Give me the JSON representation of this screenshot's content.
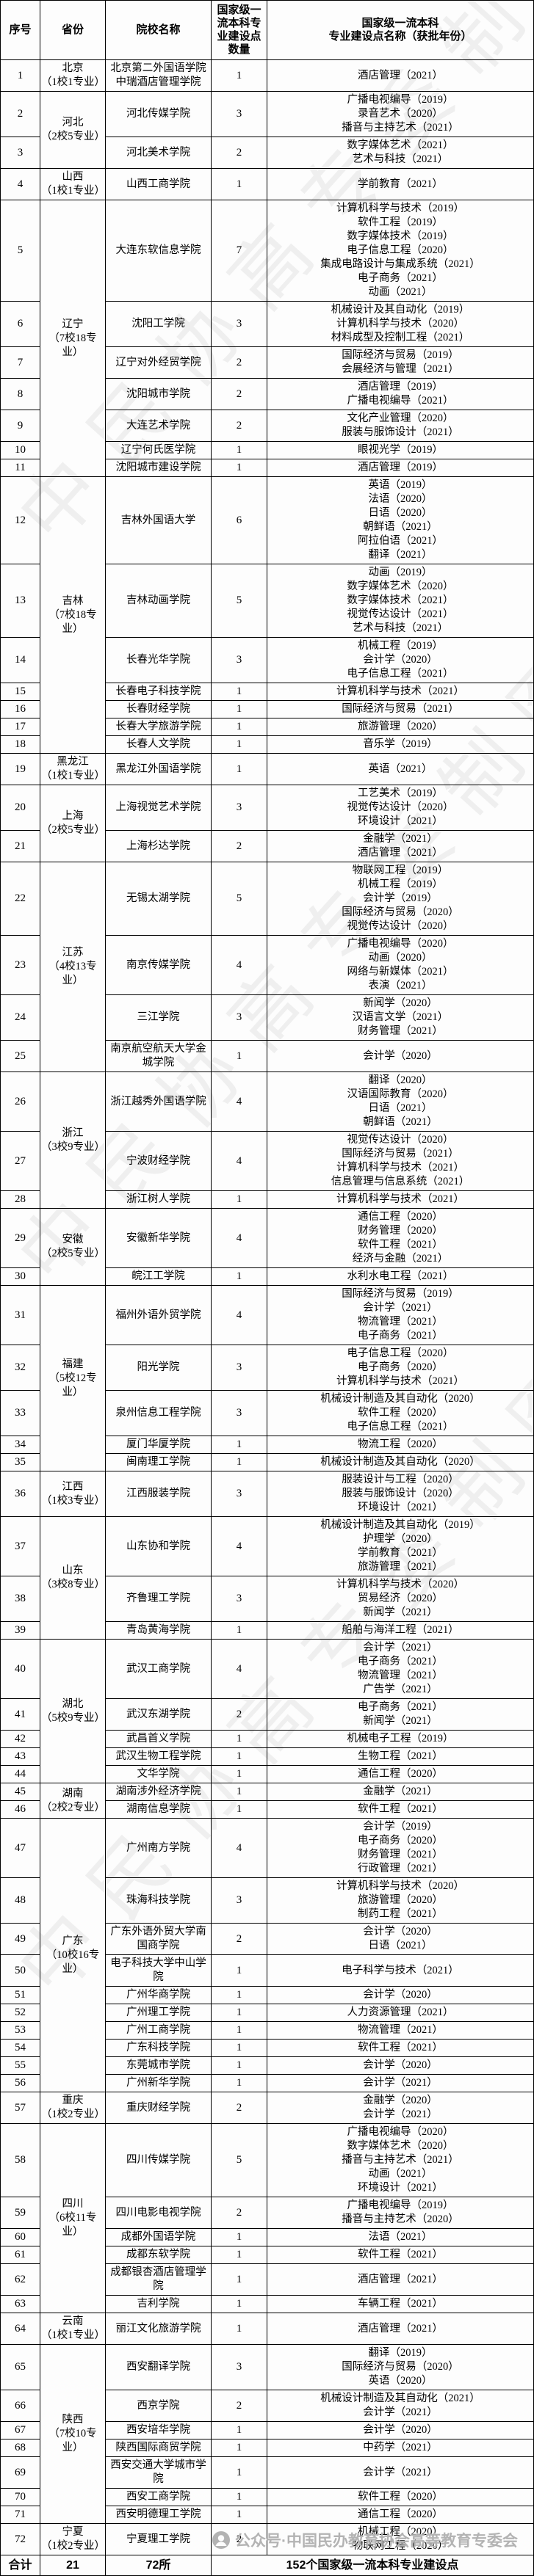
{
  "table": {
    "columns": [
      "序号",
      "省份",
      "院校名称",
      "国家级一流本科专业建设点数量",
      "国家级一流本科\n专业建设点名称（获批年份）"
    ],
    "provinces": [
      {
        "name": "北京",
        "note": "（1校1专业）",
        "schools": [
          {
            "no": "1",
            "name": "北京第二外国语学院中瑞酒店管理学院",
            "count": "1",
            "majors": [
              "酒店管理（2021）"
            ]
          }
        ]
      },
      {
        "name": "河北",
        "note": "（2校5专业）",
        "schools": [
          {
            "no": "2",
            "name": "河北传媒学院",
            "count": "3",
            "majors": [
              "广播电视编导（2019）",
              "录音艺术（2020）",
              "播音与主持艺术（2021）"
            ]
          },
          {
            "no": "3",
            "name": "河北美术学院",
            "count": "2",
            "majors": [
              "数字媒体艺术（2021）",
              "艺术与科技（2021）"
            ]
          }
        ]
      },
      {
        "name": "山西",
        "note": "（1校1专业）",
        "schools": [
          {
            "no": "4",
            "name": "山西工商学院",
            "count": "1",
            "majors": [
              "学前教育（2021）"
            ]
          }
        ]
      },
      {
        "name": "辽宁",
        "note": "（7校18专业）",
        "schools": [
          {
            "no": "5",
            "name": "大连东软信息学院",
            "count": "7",
            "majors": [
              "计算机科学与技术（2019）",
              "软件工程（2019）",
              "数字媒体技术（2019）",
              "电子信息工程（2020）",
              "集成电路设计与集成系统（2021）",
              "电子商务（2021）",
              "动画（2021）"
            ]
          },
          {
            "no": "6",
            "name": "沈阳工学院",
            "count": "3",
            "majors": [
              "机械设计及其自动化（2019）",
              "计算机科学与技术（2020）",
              "材料成型及控制工程（2021）"
            ]
          },
          {
            "no": "7",
            "name": "辽宁对外经贸学院",
            "count": "2",
            "majors": [
              "国际经济与贸易（2019）",
              "会展经济与管理（2021）"
            ]
          },
          {
            "no": "8",
            "name": "沈阳城市学院",
            "count": "2",
            "majors": [
              "酒店管理（2019）",
              "广播电视编导（2021）"
            ]
          },
          {
            "no": "9",
            "name": "大连艺术学院",
            "count": "2",
            "majors": [
              "文化产业管理（2020）",
              "服装与服饰设计（2021）"
            ]
          },
          {
            "no": "10",
            "name": "辽宁何氏医学院",
            "count": "1",
            "majors": [
              "眼视光学（2019）"
            ]
          },
          {
            "no": "11",
            "name": "沈阳城市建设学院",
            "count": "1",
            "majors": [
              "酒店管理（2019）"
            ]
          }
        ]
      },
      {
        "name": "吉林",
        "note": "（7校18专业）",
        "schools": [
          {
            "no": "12",
            "name": "吉林外国语大学",
            "count": "6",
            "majors": [
              "英语（2019）",
              "法语（2020）",
              "日语（2020）",
              "朝鲜语（2021）",
              "阿拉伯语（2021）",
              "翻译（2021）"
            ]
          },
          {
            "no": "13",
            "name": "吉林动画学院",
            "count": "5",
            "majors": [
              "动画（2019）",
              "数字媒体艺术（2020）",
              "数字媒体技术（2021）",
              "视觉传达设计（2021）",
              "艺术与科技（2021）"
            ]
          },
          {
            "no": "14",
            "name": "长春光华学院",
            "count": "3",
            "majors": [
              "机械工程（2019）",
              "会计学（2020）",
              "电子信息工程（2021）"
            ]
          },
          {
            "no": "15",
            "name": "长春电子科技学院",
            "count": "1",
            "majors": [
              "计算机科学与技术（2021）"
            ]
          },
          {
            "no": "16",
            "name": "长春财经学院",
            "count": "1",
            "majors": [
              "国际经济与贸易（2021）"
            ]
          },
          {
            "no": "17",
            "name": "长春大学旅游学院",
            "count": "1",
            "majors": [
              "旅游管理（2020）"
            ]
          },
          {
            "no": "18",
            "name": "长春人文学院",
            "count": "1",
            "majors": [
              "音乐学（2019）"
            ]
          }
        ]
      },
      {
        "name": "黑龙江",
        "note": "（1校1专业）",
        "schools": [
          {
            "no": "19",
            "name": "黑龙江外国语学院",
            "count": "1",
            "majors": [
              "英语（2021）"
            ]
          }
        ]
      },
      {
        "name": "上海",
        "note": "（2校5专业）",
        "schools": [
          {
            "no": "20",
            "name": "上海视觉艺术学院",
            "count": "3",
            "majors": [
              "工艺美术（2019）",
              "视觉传达设计（2020）",
              "环境设计（2021）"
            ]
          },
          {
            "no": "21",
            "name": "上海杉达学院",
            "count": "2",
            "majors": [
              "金融学（2021）",
              "酒店管理（2021）"
            ]
          }
        ]
      },
      {
        "name": "江苏",
        "note": "（4校13专业）",
        "schools": [
          {
            "no": "22",
            "name": "无锡太湖学院",
            "count": "5",
            "majors": [
              "物联网工程（2019）",
              "机械工程（2019）",
              "会计学（2019）",
              "国际经济与贸易（2020）",
              "视觉传达设计（2020）"
            ]
          },
          {
            "no": "23",
            "name": "南京传媒学院",
            "count": "4",
            "majors": [
              "广播电视编导（2020）",
              "动画（2020）",
              "网络与新媒体（2021）",
              "表演（2021）"
            ]
          },
          {
            "no": "24",
            "name": "三江学院",
            "count": "3",
            "majors": [
              "新闻学（2020）",
              "汉语言文学（2021）",
              "财务管理（2021）"
            ]
          },
          {
            "no": "25",
            "name": "南京航空航天大学金城学院",
            "count": "1",
            "majors": [
              "会计学（2020）"
            ]
          }
        ]
      },
      {
        "name": "浙江",
        "note": "（3校9专业）",
        "schools": [
          {
            "no": "26",
            "name": "浙江越秀外国语学院",
            "count": "4",
            "majors": [
              "翻译（2020）",
              "汉语国际教育（2020）",
              "日语（2021）",
              "朝鲜语（2021）"
            ]
          },
          {
            "no": "27",
            "name": "宁波财经学院",
            "count": "4",
            "majors": [
              "视觉传达设计（2020）",
              "国际经济与贸易（2021）",
              "计算机科学与技术（2021）",
              "信息管理与信息系统（2021）"
            ]
          },
          {
            "no": "28",
            "name": "浙江树人学院",
            "count": "1",
            "majors": [
              "计算机科学与技术（2021）"
            ]
          }
        ]
      },
      {
        "name": "安徽",
        "note": "（2校5专业）",
        "schools": [
          {
            "no": "29",
            "name": "安徽新华学院",
            "count": "4",
            "majors": [
              "通信工程（2020）",
              "财务管理（2020）",
              "软件工程（2021）",
              "经济与金融（2021）"
            ]
          },
          {
            "no": "30",
            "name": "皖江工学院",
            "count": "1",
            "majors": [
              "水利水电工程（2021）"
            ]
          }
        ]
      },
      {
        "name": "福建",
        "note": "（5校12专业）",
        "schools": [
          {
            "no": "31",
            "name": "福州外语外贸学院",
            "count": "4",
            "majors": [
              "国际经济与贸易（2019）",
              "会计学（2021）",
              "物流管理（2021）",
              "电子商务（2021）"
            ]
          },
          {
            "no": "32",
            "name": "阳光学院",
            "count": "3",
            "majors": [
              "电子信息工程（2020）",
              "电子商务（2020）",
              "计算机科学与技术（2021）"
            ]
          },
          {
            "no": "33",
            "name": "泉州信息工程学院",
            "count": "3",
            "majors": [
              "机械设计制造及其自动化（2020）",
              "软件工程（2020）",
              "电子信息工程（2021）"
            ]
          },
          {
            "no": "34",
            "name": "厦门华厦学院",
            "count": "1",
            "majors": [
              "物流工程（2020）"
            ]
          },
          {
            "no": "35",
            "name": "闽南理工学院",
            "count": "1",
            "majors": [
              "机械设计制造及其自动化（2020）"
            ]
          }
        ]
      },
      {
        "name": "江西",
        "note": "（1校3专业）",
        "schools": [
          {
            "no": "36",
            "name": "江西服装学院",
            "count": "3",
            "majors": [
              "服装设计与工程（2020）",
              "服装与服饰设计（2020）",
              "环境设计（2021）"
            ]
          }
        ]
      },
      {
        "name": "山东",
        "note": "（3校8专业）",
        "schools": [
          {
            "no": "37",
            "name": "山东协和学院",
            "count": "4",
            "majors": [
              "机械设计制造及其自动化（2019）",
              "护理学（2020）",
              "学前教育（2021）",
              "旅游管理（2021）"
            ]
          },
          {
            "no": "38",
            "name": "齐鲁理工学院",
            "count": "3",
            "majors": [
              "计算机科学与技术（2020）",
              "贸易经济（2020）",
              "新闻学（2021）"
            ]
          },
          {
            "no": "39",
            "name": "青岛黄海学院",
            "count": "1",
            "majors": [
              "船舶与海洋工程（2021）"
            ]
          }
        ]
      },
      {
        "name": "湖北",
        "note": "（5校9专业）",
        "schools": [
          {
            "no": "40",
            "name": "武汉工商学院",
            "count": "4",
            "majors": [
              "会计学（2021）",
              "电子商务（2021）",
              "物流管理（2021）",
              "广告学（2021）"
            ]
          },
          {
            "no": "41",
            "name": "武汉东湖学院",
            "count": "2",
            "majors": [
              "电子商务（2021）",
              "新闻学（2021）"
            ]
          },
          {
            "no": "42",
            "name": "武昌首义学院",
            "count": "1",
            "majors": [
              "机械电子工程（2019）"
            ]
          },
          {
            "no": "43",
            "name": "武汉生物工程学院",
            "count": "1",
            "majors": [
              "生物工程（2021）"
            ]
          },
          {
            "no": "44",
            "name": "文华学院",
            "count": "1",
            "majors": [
              "通信工程（2020）"
            ]
          }
        ]
      },
      {
        "name": "湖南",
        "note": "（2校2专业）",
        "schools": [
          {
            "no": "45",
            "name": "湖南涉外经济学院",
            "count": "1",
            "majors": [
              "金融学（2021）"
            ]
          },
          {
            "no": "46",
            "name": "湖南信息学院",
            "count": "1",
            "majors": [
              "软件工程（2021）"
            ]
          }
        ]
      },
      {
        "name": "广东",
        "note": "（10校16专业）",
        "schools": [
          {
            "no": "47",
            "name": "广州南方学院",
            "count": "4",
            "majors": [
              "会计学（2019）",
              "电子商务（2020）",
              "财务管理（2021）",
              "行政管理（2021）"
            ]
          },
          {
            "no": "48",
            "name": "珠海科技学院",
            "count": "3",
            "majors": [
              "计算机科学与技术（2020）",
              "旅游管理（2020）",
              "制药工程（2021）"
            ]
          },
          {
            "no": "49",
            "name": "广东外语外贸大学南国商学院",
            "count": "2",
            "majors": [
              "会计学（2020）",
              "日语（2021）"
            ]
          },
          {
            "no": "50",
            "name": "电子科技大学中山学院",
            "count": "1",
            "majors": [
              "电子科学与技术（2021）"
            ]
          },
          {
            "no": "51",
            "name": "广州华商学院",
            "count": "1",
            "majors": [
              "会计学（2020）"
            ]
          },
          {
            "no": "52",
            "name": "广州理工学院",
            "count": "1",
            "majors": [
              "人力资源管理（2021）"
            ]
          },
          {
            "no": "53",
            "name": "广州工商学院",
            "count": "1",
            "majors": [
              "物流管理（2021）"
            ]
          },
          {
            "no": "54",
            "name": "广东科技学院",
            "count": "1",
            "majors": [
              "软件工程（2021）"
            ]
          },
          {
            "no": "55",
            "name": "东莞城市学院",
            "count": "1",
            "majors": [
              "会计学（2020）"
            ]
          },
          {
            "no": "56",
            "name": "广州新华学院",
            "count": "1",
            "majors": [
              "会计学（2021）"
            ]
          }
        ]
      },
      {
        "name": "重庆",
        "note": "（1校2专业）",
        "schools": [
          {
            "no": "57",
            "name": "重庆财经学院",
            "count": "2",
            "majors": [
              "金融学（2020）",
              "会计学（2021）"
            ]
          }
        ]
      },
      {
        "name": "四川",
        "note": "（6校11专业）",
        "schools": [
          {
            "no": "58",
            "name": "四川传媒学院",
            "count": "5",
            "majors": [
              "广播电视编导（2020）",
              "数字媒体艺术（2020）",
              "播音与主持艺术（2021）",
              "动画（2021）",
              "环境设计（2021）"
            ]
          },
          {
            "no": "59",
            "name": "四川电影电视学院",
            "count": "2",
            "majors": [
              "广播电视编导（2019）",
              "播音与主持艺术（2020）"
            ]
          },
          {
            "no": "60",
            "name": "成都外国语学院",
            "count": "1",
            "majors": [
              "法语（2021）"
            ]
          },
          {
            "no": "61",
            "name": "成都东软学院",
            "count": "1",
            "majors": [
              "软件工程（2021）"
            ]
          },
          {
            "no": "62",
            "name": "成都银杏酒店管理学院",
            "count": "1",
            "majors": [
              "酒店管理（2021）"
            ]
          },
          {
            "no": "63",
            "name": "吉利学院",
            "count": "1",
            "majors": [
              "车辆工程（2021）"
            ]
          }
        ]
      },
      {
        "name": "云南",
        "note": "（1校1专业）",
        "schools": [
          {
            "no": "64",
            "name": "丽江文化旅游学院",
            "count": "1",
            "majors": [
              "酒店管理（2021）"
            ]
          }
        ]
      },
      {
        "name": "陕西",
        "note": "（7校10专业）",
        "schools": [
          {
            "no": "65",
            "name": "西安翻译学院",
            "count": "3",
            "majors": [
              "翻译（2019）",
              "国际经济与贸易（2020）",
              "英语（2020）"
            ]
          },
          {
            "no": "66",
            "name": "西京学院",
            "count": "2",
            "majors": [
              "机械设计制造及其自动化（2021）",
              "会计学（2021）"
            ]
          },
          {
            "no": "67",
            "name": "西安培华学院",
            "count": "1",
            "majors": [
              "会计学（2020）"
            ]
          },
          {
            "no": "68",
            "name": "陕西国际商贸学院",
            "count": "1",
            "majors": [
              "中药学（2021）"
            ]
          },
          {
            "no": "69",
            "name": "西安交通大学城市学院",
            "count": "1",
            "majors": [
              "会计学（2021）"
            ]
          },
          {
            "no": "70",
            "name": "西安工商学院",
            "count": "1",
            "majors": [
              "软件工程（2020）"
            ]
          },
          {
            "no": "71",
            "name": "西安明德理工学院",
            "count": "1",
            "majors": [
              "通信工程（2020）"
            ]
          }
        ]
      },
      {
        "name": "宁夏",
        "note": "（1校2专业）",
        "schools": [
          {
            "no": "72",
            "name": "宁夏理工学院",
            "count": "2",
            "majors": [
              "机械工程（2020）",
              "物联网工程（2020）"
            ]
          }
        ]
      }
    ],
    "total": {
      "label": "合计",
      "provinces": "21",
      "schools": "72所",
      "points": "152个国家级一流本科专业建设点"
    }
  },
  "watermarks": {
    "diagonal": "中民协高专委制图",
    "footer": "公众号·中国民办教育协会高等教育专委会"
  }
}
